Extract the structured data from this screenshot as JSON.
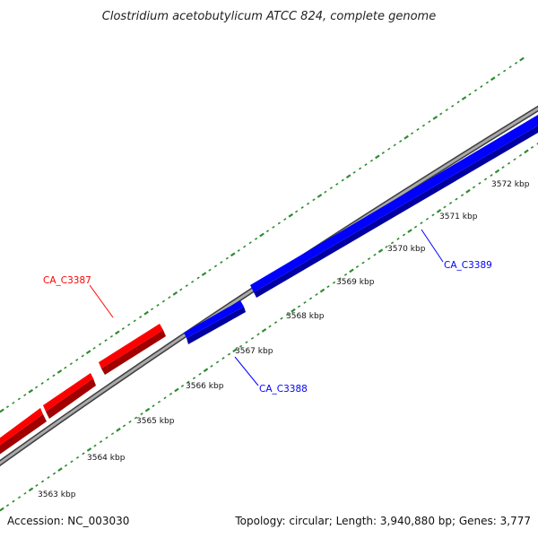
{
  "title": "Clostridium acetobutylicum ATCC 824, complete genome",
  "footer": {
    "accession": "Accession: NC_003030",
    "summary": "Topology: circular; Length: 3,940,880 bp; Genes: 3,777"
  },
  "ticks": [
    {
      "label": "3563 kbp"
    },
    {
      "label": "3564 kbp"
    },
    {
      "label": "3565 kbp"
    },
    {
      "label": "3566 kbp"
    },
    {
      "label": "3567 kbp"
    },
    {
      "label": "3568 kbp"
    },
    {
      "label": "3569 kbp"
    },
    {
      "label": "3570 kbp"
    },
    {
      "label": "3571 kbp"
    },
    {
      "label": "3572 kbp"
    }
  ],
  "genes": [
    {
      "name": "CA_C3387",
      "strand": "forward",
      "color": "#ff0000"
    },
    {
      "name": "CA_C3388",
      "strand": "reverse",
      "color": "#0000ff"
    },
    {
      "name": "CA_C3389",
      "strand": "reverse",
      "color": "#0000ff"
    }
  ],
  "colors": {
    "backbone": "#8a8a8a",
    "tick_marks": "#2e8b2e",
    "forward_gene": "#ff0000",
    "reverse_gene": "#0000ff"
  }
}
